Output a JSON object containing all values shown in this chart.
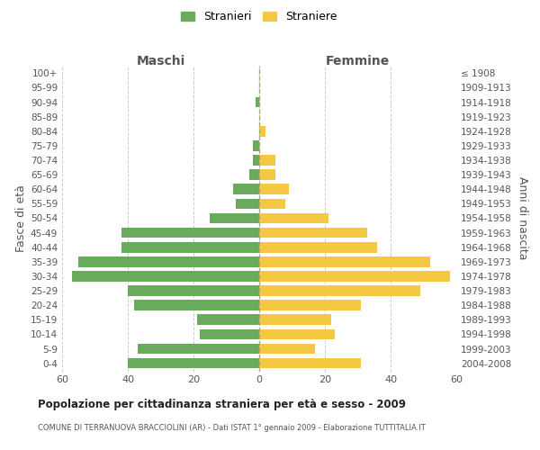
{
  "age_groups": [
    "0-4",
    "5-9",
    "10-14",
    "15-19",
    "20-24",
    "25-29",
    "30-34",
    "35-39",
    "40-44",
    "45-49",
    "50-54",
    "55-59",
    "60-64",
    "65-69",
    "70-74",
    "75-79",
    "80-84",
    "85-89",
    "90-94",
    "95-99",
    "100+"
  ],
  "birth_years": [
    "2004-2008",
    "1999-2003",
    "1994-1998",
    "1989-1993",
    "1984-1988",
    "1979-1983",
    "1974-1978",
    "1969-1973",
    "1964-1968",
    "1959-1963",
    "1954-1958",
    "1949-1953",
    "1944-1948",
    "1939-1943",
    "1934-1938",
    "1929-1933",
    "1924-1928",
    "1919-1923",
    "1914-1918",
    "1909-1913",
    "≤ 1908"
  ],
  "maschi": [
    40,
    37,
    18,
    19,
    38,
    40,
    57,
    55,
    42,
    42,
    15,
    7,
    8,
    3,
    2,
    2,
    0,
    0,
    1,
    0,
    0
  ],
  "femmine": [
    31,
    17,
    23,
    22,
    31,
    49,
    58,
    52,
    36,
    33,
    21,
    8,
    9,
    5,
    5,
    0,
    2,
    0,
    0,
    0,
    0
  ],
  "maschi_color": "#6aaa5c",
  "femmine_color": "#f5c842",
  "title": "Popolazione per cittadinanza straniera per età e sesso - 2009",
  "subtitle": "COMUNE DI TERRANUOVA BRACCIOLINI (AR) - Dati ISTAT 1° gennaio 2009 - Elaborazione TUTTITALIA.IT",
  "ylabel_left": "Fasce di età",
  "ylabel_right": "Anni di nascita",
  "header_left": "Maschi",
  "header_right": "Femmine",
  "legend_maschi": "Stranieri",
  "legend_femmine": "Straniere",
  "xlim": 60,
  "background_color": "#ffffff",
  "bar_height": 0.72,
  "grid_color": "#cccccc"
}
